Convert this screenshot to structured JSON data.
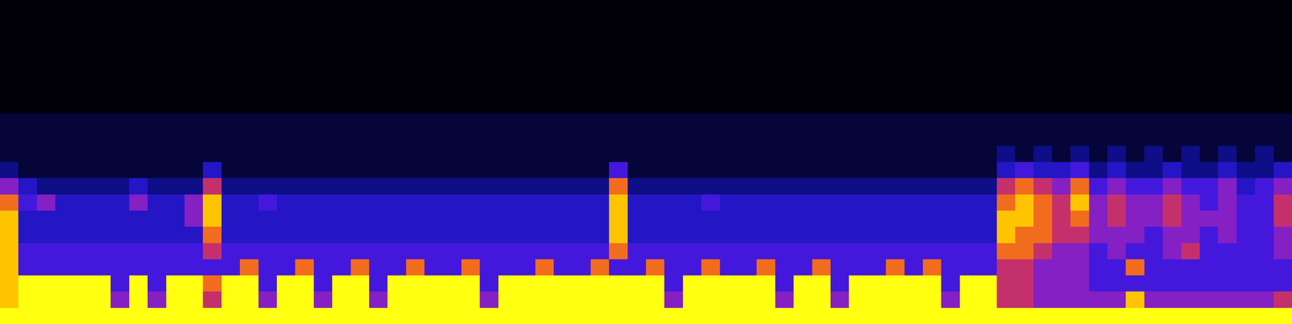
{
  "chart_data": {
    "type": "heatmap",
    "tick_labels": false,
    "color_range": [
      0,
      9
    ],
    "cells": [
      [
        0,
        0,
        0,
        0,
        0,
        0,
        0,
        0,
        0,
        0,
        0,
        0,
        0,
        0,
        0,
        0,
        0,
        0,
        0,
        0,
        0,
        0,
        0,
        0,
        0,
        0,
        0,
        0,
        0,
        0,
        0,
        0,
        0,
        0,
        0,
        0,
        0,
        0,
        0,
        0,
        0,
        0,
        0,
        0,
        0,
        0,
        0,
        0,
        0,
        0,
        0,
        0,
        0,
        0,
        0,
        0,
        0,
        0,
        0,
        0,
        0,
        0,
        0,
        0,
        0,
        0,
        0,
        0,
        0,
        0
      ],
      [
        0,
        0,
        0,
        0,
        0,
        0,
        0,
        0,
        0,
        0,
        0,
        0,
        0,
        0,
        0,
        0,
        0,
        0,
        0,
        0,
        0,
        0,
        0,
        0,
        0,
        0,
        0,
        0,
        0,
        0,
        0,
        0,
        0,
        0,
        0,
        0,
        0,
        0,
        0,
        0,
        0,
        0,
        0,
        0,
        0,
        0,
        0,
        0,
        0,
        0,
        0,
        0,
        0,
        0,
        0,
        0,
        0,
        0,
        0,
        0,
        0,
        0,
        0,
        0,
        0,
        0,
        0,
        0,
        0,
        0
      ],
      [
        0,
        0,
        0,
        0,
        0,
        0,
        0,
        0,
        0,
        0,
        0,
        0,
        0,
        0,
        0,
        0,
        0,
        0,
        0,
        0,
        0,
        0,
        0,
        0,
        0,
        0,
        0,
        0,
        0,
        0,
        0,
        0,
        0,
        0,
        0,
        0,
        0,
        0,
        0,
        0,
        0,
        0,
        0,
        0,
        0,
        0,
        0,
        0,
        0,
        0,
        0,
        0,
        0,
        0,
        0,
        0,
        0,
        0,
        0,
        0,
        0,
        0,
        0,
        0,
        0,
        0,
        0,
        0,
        0,
        0
      ],
      [
        0,
        0,
        0,
        0,
        0,
        0,
        0,
        0,
        0,
        0,
        0,
        0,
        0,
        0,
        0,
        0,
        0,
        0,
        0,
        0,
        0,
        0,
        0,
        0,
        0,
        0,
        0,
        0,
        0,
        0,
        0,
        0,
        0,
        0,
        0,
        0,
        0,
        0,
        0,
        0,
        0,
        0,
        0,
        0,
        0,
        0,
        0,
        0,
        0,
        0,
        0,
        0,
        0,
        0,
        0,
        0,
        0,
        0,
        0,
        0,
        0,
        0,
        0,
        0,
        0,
        0,
        0,
        0,
        0,
        0
      ],
      [
        0,
        0,
        0,
        0,
        0,
        0,
        0,
        0,
        0,
        0,
        0,
        0,
        0,
        0,
        0,
        0,
        0,
        0,
        0,
        0,
        0,
        0,
        0,
        0,
        0,
        0,
        0,
        0,
        0,
        0,
        0,
        0,
        0,
        0,
        0,
        0,
        0,
        0,
        0,
        0,
        0,
        0,
        0,
        0,
        0,
        0,
        0,
        0,
        0,
        0,
        0,
        0,
        0,
        0,
        0,
        0,
        0,
        0,
        0,
        0,
        0,
        0,
        0,
        0,
        0,
        0,
        0,
        0,
        0,
        0
      ],
      [
        0,
        0,
        0,
        0,
        0,
        0,
        0,
        0,
        0,
        0,
        0,
        0,
        0,
        0,
        0,
        0,
        0,
        0,
        0,
        0,
        0,
        0,
        0,
        0,
        0,
        0,
        0,
        0,
        0,
        0,
        0,
        0,
        0,
        0,
        0,
        0,
        0,
        0,
        0,
        0,
        0,
        0,
        0,
        0,
        0,
        0,
        0,
        0,
        0,
        0,
        0,
        0,
        0,
        0,
        0,
        0,
        0,
        0,
        0,
        0,
        0,
        0,
        0,
        0,
        0,
        0,
        0,
        0,
        0,
        0
      ],
      [
        0,
        0,
        0,
        0,
        0,
        0,
        0,
        0,
        0,
        0,
        0,
        0,
        0,
        0,
        0,
        0,
        0,
        0,
        0,
        0,
        0,
        0,
        0,
        0,
        0,
        0,
        0,
        0,
        0,
        0,
        0,
        0,
        0,
        0,
        0,
        0,
        0,
        0,
        0,
        0,
        0,
        0,
        0,
        0,
        0,
        0,
        0,
        0,
        0,
        0,
        0,
        0,
        0,
        0,
        0,
        0,
        0,
        0,
        0,
        0,
        0,
        0,
        0,
        0,
        0,
        0,
        0,
        0,
        0,
        0
      ],
      [
        1,
        1,
        1,
        1,
        1,
        1,
        1,
        1,
        1,
        1,
        1,
        1,
        1,
        1,
        1,
        1,
        1,
        1,
        1,
        1,
        1,
        1,
        1,
        1,
        1,
        1,
        1,
        1,
        1,
        1,
        1,
        1,
        1,
        1,
        1,
        1,
        1,
        1,
        1,
        1,
        1,
        1,
        1,
        1,
        1,
        1,
        1,
        1,
        1,
        1,
        1,
        1,
        1,
        1,
        1,
        1,
        1,
        1,
        1,
        1,
        1,
        1,
        1,
        1,
        1,
        1,
        1,
        1,
        1,
        1
      ],
      [
        1,
        1,
        1,
        1,
        1,
        1,
        1,
        1,
        1,
        1,
        1,
        1,
        1,
        1,
        1,
        1,
        1,
        1,
        1,
        1,
        1,
        1,
        1,
        1,
        1,
        1,
        1,
        1,
        1,
        1,
        1,
        1,
        1,
        1,
        1,
        1,
        1,
        1,
        1,
        1,
        1,
        1,
        1,
        1,
        1,
        1,
        1,
        1,
        1,
        1,
        1,
        1,
        1,
        1,
        1,
        1,
        1,
        1,
        1,
        1,
        1,
        1,
        1,
        1,
        1,
        1,
        1,
        1,
        1,
        1
      ],
      [
        1,
        1,
        1,
        1,
        1,
        1,
        1,
        1,
        1,
        1,
        1,
        1,
        1,
        1,
        1,
        1,
        1,
        1,
        1,
        1,
        1,
        1,
        1,
        1,
        1,
        1,
        1,
        1,
        1,
        1,
        1,
        1,
        1,
        1,
        1,
        1,
        1,
        1,
        1,
        1,
        1,
        1,
        1,
        1,
        1,
        1,
        1,
        1,
        1,
        1,
        1,
        1,
        1,
        1,
        2,
        1,
        2,
        1,
        2,
        1,
        2,
        1,
        2,
        1,
        2,
        1,
        2,
        1,
        2,
        1
      ],
      [
        2,
        1,
        1,
        1,
        1,
        1,
        1,
        1,
        1,
        1,
        1,
        3,
        1,
        1,
        1,
        1,
        1,
        1,
        1,
        1,
        1,
        1,
        1,
        1,
        1,
        1,
        1,
        1,
        1,
        1,
        1,
        1,
        1,
        4,
        1,
        1,
        1,
        1,
        1,
        1,
        1,
        1,
        1,
        1,
        1,
        1,
        1,
        1,
        1,
        1,
        1,
        1,
        1,
        1,
        3,
        4,
        3,
        3,
        4,
        2,
        3,
        2,
        2,
        3,
        2,
        2,
        3,
        2,
        2,
        3
      ],
      [
        5,
        3,
        2,
        2,
        2,
        2,
        2,
        3,
        2,
        2,
        2,
        6,
        2,
        2,
        2,
        2,
        2,
        2,
        2,
        2,
        2,
        2,
        2,
        2,
        2,
        2,
        2,
        2,
        2,
        2,
        2,
        2,
        2,
        7,
        2,
        2,
        2,
        2,
        2,
        2,
        2,
        2,
        2,
        2,
        2,
        2,
        2,
        2,
        2,
        2,
        2,
        2,
        2,
        2,
        6,
        7,
        6,
        5,
        7,
        4,
        5,
        4,
        4,
        5,
        4,
        4,
        5,
        3,
        4,
        5
      ],
      [
        7,
        4,
        5,
        3,
        3,
        3,
        3,
        5,
        3,
        3,
        5,
        8,
        3,
        3,
        4,
        3,
        3,
        3,
        3,
        3,
        3,
        3,
        3,
        3,
        3,
        3,
        3,
        3,
        3,
        3,
        3,
        3,
        3,
        8,
        3,
        3,
        3,
        3,
        4,
        3,
        3,
        3,
        3,
        3,
        3,
        3,
        3,
        3,
        3,
        3,
        3,
        3,
        3,
        3,
        7,
        8,
        7,
        6,
        8,
        5,
        6,
        5,
        5,
        6,
        5,
        4,
        5,
        4,
        4,
        6
      ],
      [
        8,
        3,
        3,
        3,
        3,
        3,
        3,
        3,
        3,
        3,
        5,
        8,
        3,
        3,
        3,
        3,
        3,
        3,
        3,
        3,
        3,
        3,
        3,
        3,
        3,
        3,
        3,
        3,
        3,
        3,
        3,
        3,
        3,
        8,
        3,
        3,
        3,
        3,
        3,
        3,
        3,
        3,
        3,
        3,
        3,
        3,
        3,
        3,
        3,
        3,
        3,
        3,
        3,
        3,
        8,
        8,
        7,
        6,
        7,
        5,
        6,
        5,
        5,
        6,
        5,
        5,
        5,
        4,
        4,
        6
      ],
      [
        8,
        3,
        3,
        3,
        3,
        3,
        3,
        3,
        3,
        3,
        3,
        7,
        3,
        3,
        3,
        3,
        3,
        3,
        3,
        3,
        3,
        3,
        3,
        3,
        3,
        3,
        3,
        3,
        3,
        3,
        3,
        3,
        3,
        8,
        3,
        3,
        3,
        3,
        3,
        3,
        3,
        3,
        3,
        3,
        3,
        3,
        3,
        3,
        3,
        3,
        3,
        3,
        3,
        3,
        8,
        7,
        7,
        6,
        6,
        5,
        5,
        5,
        4,
        5,
        5,
        4,
        5,
        4,
        4,
        5
      ],
      [
        8,
        4,
        4,
        4,
        4,
        4,
        4,
        4,
        4,
        4,
        4,
        6,
        4,
        4,
        4,
        4,
        4,
        4,
        4,
        4,
        4,
        4,
        4,
        4,
        4,
        4,
        4,
        4,
        4,
        4,
        4,
        4,
        4,
        7,
        4,
        4,
        4,
        4,
        4,
        4,
        4,
        4,
        4,
        4,
        4,
        4,
        4,
        4,
        4,
        4,
        4,
        4,
        4,
        4,
        7,
        7,
        6,
        5,
        5,
        4,
        5,
        4,
        4,
        5,
        6,
        4,
        4,
        4,
        4,
        5
      ],
      [
        8,
        4,
        4,
        4,
        4,
        4,
        4,
        4,
        4,
        4,
        4,
        4,
        4,
        7,
        4,
        4,
        7,
        4,
        4,
        7,
        4,
        4,
        7,
        4,
        4,
        7,
        4,
        4,
        4,
        7,
        4,
        4,
        7,
        4,
        4,
        7,
        4,
        4,
        7,
        4,
        4,
        7,
        4,
        4,
        7,
        4,
        4,
        4,
        7,
        4,
        7,
        4,
        4,
        4,
        6,
        6,
        5,
        5,
        5,
        4,
        4,
        7,
        4,
        4,
        4,
        4,
        4,
        4,
        4,
        4
      ],
      [
        8,
        9,
        9,
        9,
        9,
        9,
        4,
        9,
        4,
        9,
        9,
        7,
        9,
        9,
        4,
        9,
        9,
        4,
        9,
        9,
        4,
        9,
        9,
        9,
        9,
        9,
        4,
        9,
        9,
        9,
        9,
        9,
        9,
        9,
        9,
        9,
        4,
        9,
        9,
        9,
        9,
        9,
        4,
        9,
        9,
        4,
        9,
        9,
        9,
        9,
        9,
        4,
        9,
        9,
        6,
        6,
        5,
        5,
        5,
        4,
        4,
        4,
        4,
        4,
        4,
        4,
        4,
        4,
        4,
        4
      ],
      [
        8,
        9,
        9,
        9,
        9,
        9,
        5,
        9,
        5,
        9,
        9,
        6,
        9,
        9,
        5,
        9,
        9,
        5,
        9,
        9,
        5,
        9,
        9,
        9,
        9,
        9,
        5,
        9,
        9,
        9,
        9,
        9,
        9,
        9,
        9,
        9,
        5,
        9,
        9,
        9,
        9,
        9,
        5,
        9,
        9,
        5,
        9,
        9,
        9,
        9,
        9,
        5,
        9,
        9,
        6,
        6,
        5,
        5,
        5,
        5,
        5,
        8,
        5,
        5,
        5,
        5,
        5,
        5,
        5,
        6
      ],
      [
        9,
        9,
        9,
        9,
        9,
        9,
        9,
        9,
        9,
        9,
        9,
        9,
        9,
        9,
        9,
        9,
        9,
        9,
        9,
        9,
        9,
        9,
        9,
        9,
        9,
        9,
        9,
        9,
        9,
        9,
        9,
        9,
        9,
        9,
        9,
        9,
        9,
        9,
        9,
        9,
        9,
        9,
        9,
        9,
        9,
        9,
        9,
        9,
        9,
        9,
        9,
        9,
        9,
        9,
        9,
        9,
        9,
        9,
        9,
        9,
        9,
        9,
        9,
        9,
        9,
        9,
        9,
        9,
        9,
        9
      ]
    ]
  }
}
